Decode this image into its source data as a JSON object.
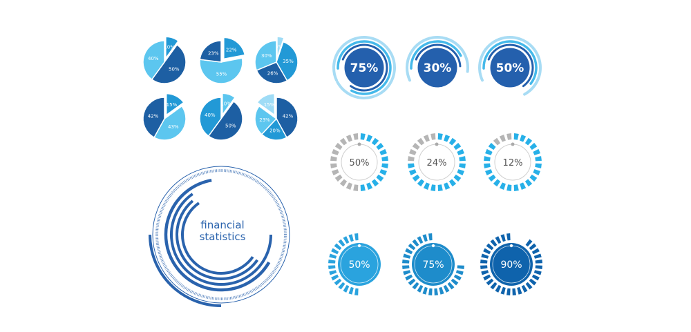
{
  "colors": {
    "dark": "#1d5fa3",
    "mid": "#2299d6",
    "light": "#5cc6ef",
    "lighter": "#9fdcf6",
    "gray": "#b5b5b5",
    "ring_dark": "#2460ad",
    "ring_light": "#a8dcf4",
    "ring_mid": "#45b9ea"
  },
  "chart_data": [
    {
      "type": "pie",
      "slices": [
        {
          "label": "10%",
          "value": 10,
          "tone": "mid",
          "exploded": true
        },
        {
          "label": "50%",
          "value": 50,
          "tone": "dark"
        },
        {
          "label": "40%",
          "value": 40,
          "tone": "light"
        }
      ]
    },
    {
      "type": "pie",
      "slices": [
        {
          "label": "22%",
          "value": 22,
          "tone": "mid",
          "exploded": true
        },
        {
          "label": "55%",
          "value": 55,
          "tone": "light"
        },
        {
          "label": "23%",
          "value": 23,
          "tone": "dark"
        }
      ]
    },
    {
      "type": "pie",
      "slices": [
        {
          "label": "5%",
          "value": 5,
          "tone": "lighter",
          "exploded": true
        },
        {
          "label": "35%",
          "value": 35,
          "tone": "mid"
        },
        {
          "label": "26%",
          "value": 26,
          "tone": "dark"
        },
        {
          "label": "30%",
          "value": 30,
          "tone": "light"
        }
      ]
    },
    {
      "type": "pie",
      "slices": [
        {
          "label": "15%",
          "value": 15,
          "tone": "mid",
          "exploded": true
        },
        {
          "label": "43%",
          "value": 43,
          "tone": "light"
        },
        {
          "label": "42%",
          "value": 42,
          "tone": "dark"
        }
      ]
    },
    {
      "type": "pie",
      "slices": [
        {
          "label": "10%",
          "value": 10,
          "tone": "light",
          "exploded": true
        },
        {
          "label": "50%",
          "value": 50,
          "tone": "dark"
        },
        {
          "label": "40%",
          "value": 40,
          "tone": "mid"
        }
      ]
    },
    {
      "type": "pie",
      "slices": [
        {
          "label": "42%",
          "value": 42,
          "tone": "dark"
        },
        {
          "label": "20%",
          "value": 20,
          "tone": "mid"
        },
        {
          "label": "23%",
          "value": 23,
          "tone": "light"
        },
        {
          "label": "15%",
          "value": 15,
          "tone": "lighter",
          "exploded": true
        }
      ]
    },
    {
      "type": "progress-rings",
      "style": "arc",
      "items": [
        {
          "label": "75%",
          "value": 75
        },
        {
          "label": "30%",
          "value": 30
        },
        {
          "label": "50%",
          "value": 50
        }
      ]
    },
    {
      "type": "progress-rings",
      "style": "segmented-gray",
      "items": [
        {
          "label": "50%",
          "value": 50
        },
        {
          "label": "24%",
          "value": 24
        },
        {
          "label": "12%",
          "value": 12
        }
      ]
    },
    {
      "type": "progress-rings",
      "style": "segmented-filled",
      "items": [
        {
          "label": "50%",
          "value": 50,
          "color": "#2aa3de"
        },
        {
          "label": "75%",
          "value": 75,
          "color": "#1e8ccb"
        },
        {
          "label": "90%",
          "value": 90,
          "color": "#0f63ac"
        }
      ]
    }
  ],
  "emblem": {
    "line1": "financial",
    "line2": "statistics"
  }
}
